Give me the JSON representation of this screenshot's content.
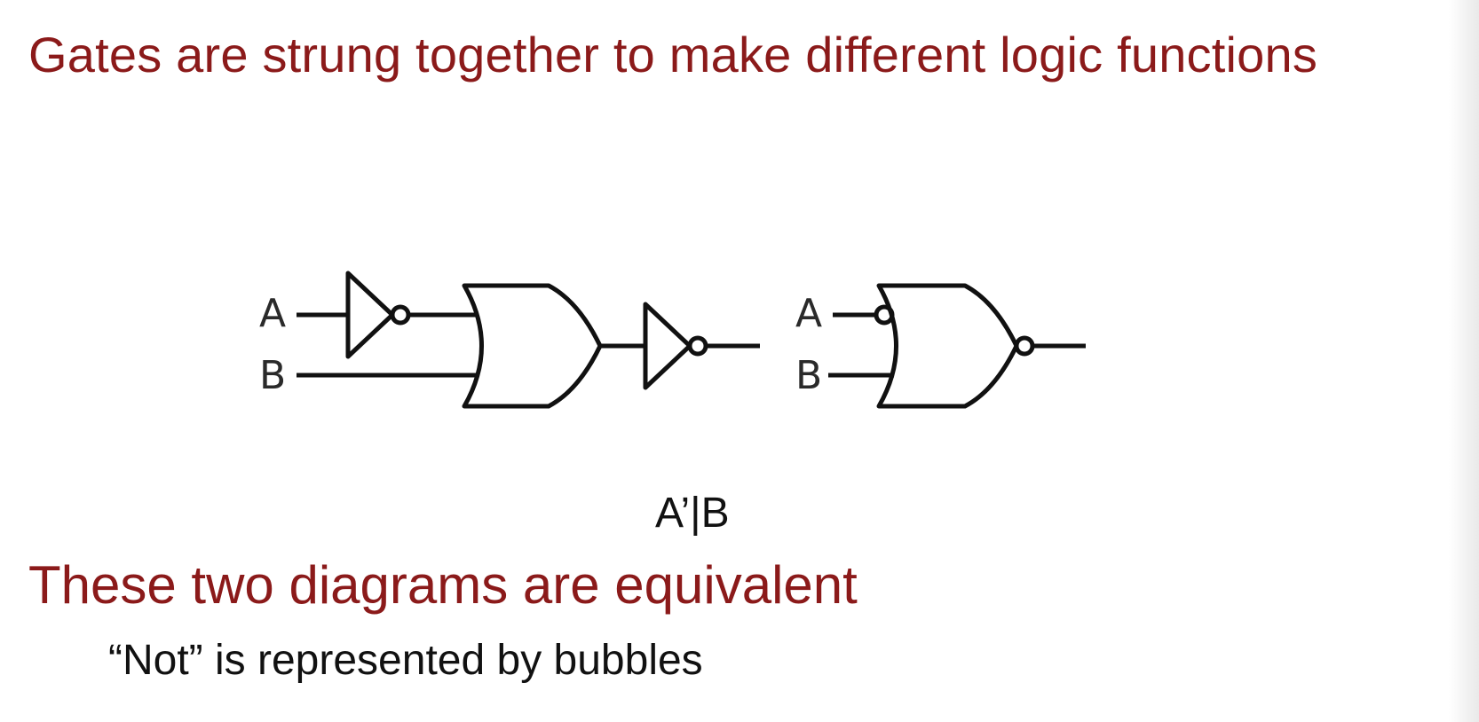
{
  "slide": {
    "title": "Gates are strung together to make different logic functions",
    "expression": "A’|B",
    "statement": "These two diagrams are equivalent",
    "note": "“Not” is represented by bubbles"
  },
  "diagram1": {
    "input_a": "A",
    "input_b": "B"
  },
  "diagram2": {
    "input_a": "A",
    "input_b": "B"
  },
  "colors": {
    "title": "#8b1a1a",
    "text": "#111111",
    "wire": "#111111"
  }
}
